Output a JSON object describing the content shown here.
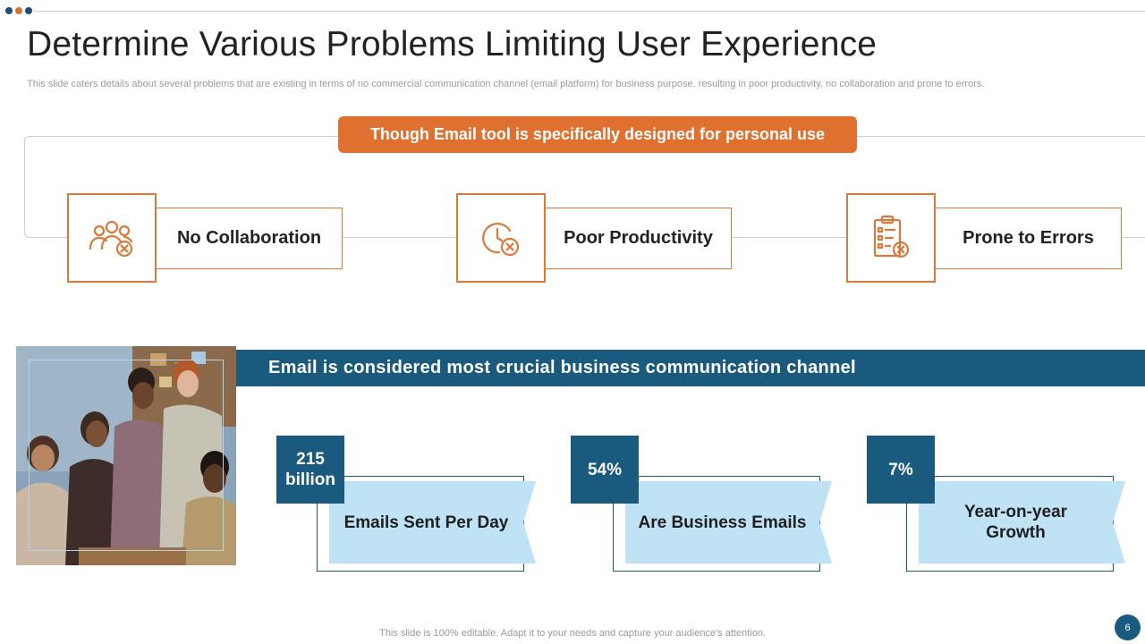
{
  "colors": {
    "accent_orange": "#e07030",
    "accent_navy": "#1a5a7f",
    "light_blue": "#bfe3f5",
    "dot_navy": "#1f4e79"
  },
  "header": {
    "title": "Determine Various Problems Limiting User Experience",
    "subtitle": "This slide caters details about several problems that are existing in terms of no commercial communication channel (email platform) for business purpose. resulting in poor productivity,  no collaboration and prone to errors."
  },
  "banner": {
    "text": "Though Email tool is specifically designed for personal use"
  },
  "problems": [
    {
      "label": "No Collaboration",
      "icon": "group-cross-icon"
    },
    {
      "label": "Poor Productivity",
      "icon": "clock-cross-icon"
    },
    {
      "label": "Prone to Errors",
      "icon": "checklist-cross-icon"
    }
  ],
  "channel_bar": {
    "text": "Email is considered  most crucial business  communication  channel"
  },
  "stats": [
    {
      "value": "215 billion",
      "label": "Emails Sent Per Day"
    },
    {
      "value": "54%",
      "label": "Are Business Emails"
    },
    {
      "value": "7%",
      "label": "Year-on-year Growth"
    }
  ],
  "footer": {
    "text": "This slide is 100% editable. Adapt it to your needs and capture your audience's attention.",
    "page_number": "6"
  }
}
